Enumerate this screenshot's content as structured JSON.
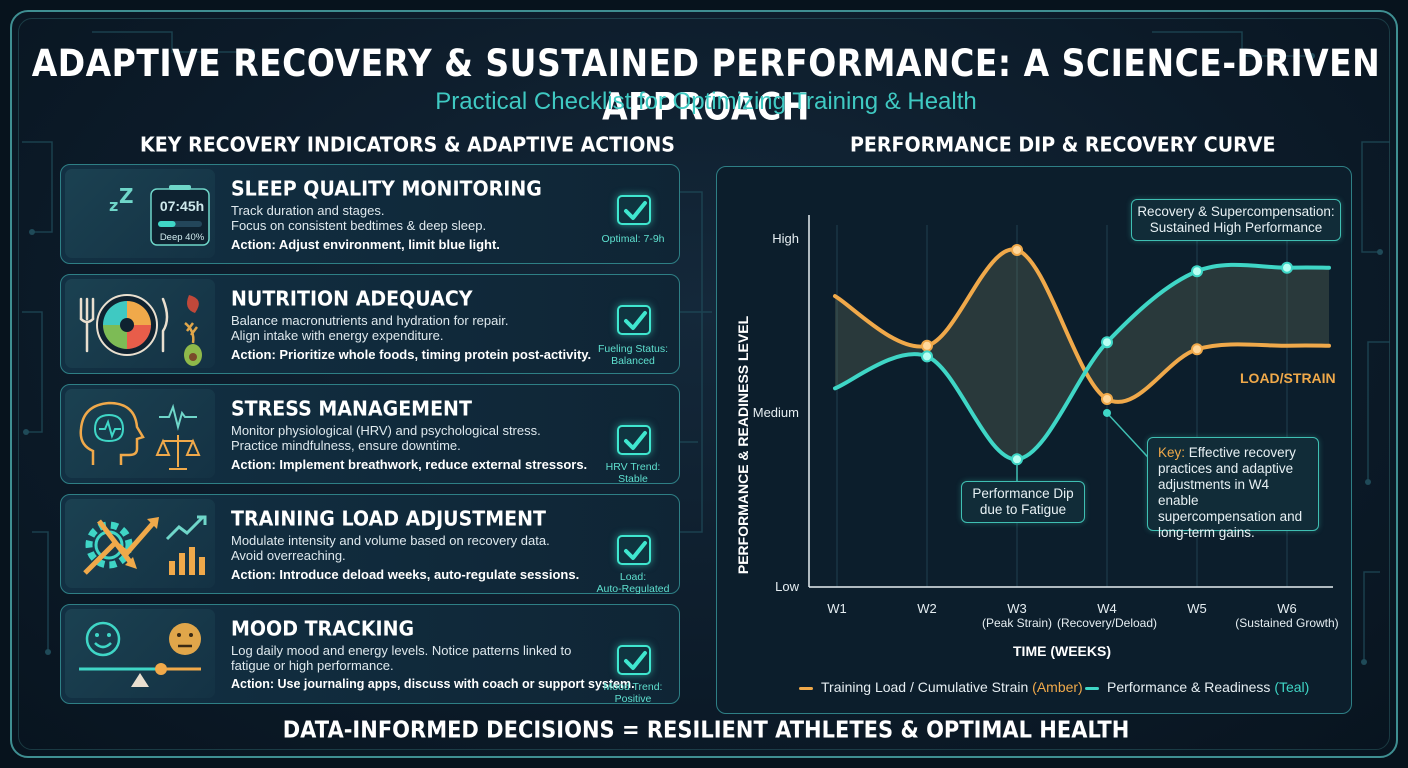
{
  "header": {
    "title": "ADAPTIVE RECOVERY & SUSTAINED PERFORMANCE: A SCIENCE-DRIVEN APPROACH",
    "subtitle": "Practical Checklist for Optimizing Training & Health"
  },
  "left_section": {
    "title": "KEY RECOVERY INDICATORS & ADAPTIVE ACTIONS",
    "cards": [
      {
        "title": "SLEEP QUALITY MONITORING",
        "line1": "Track duration and stages.",
        "line2": "Focus on consistent bedtimes & deep sleep.",
        "action": "Action: Adjust environment, limit blue light.",
        "status_line1": "Optimal: 7-9h",
        "status_line2": "",
        "icon": "moon-sleep-icon",
        "device_time": "07:45h",
        "device_deep": "Deep 40%",
        "device_deep_fraction": 0.4
      },
      {
        "title": "NUTRITION ADEQUACY",
        "line1": "Balance macronutrients and hydration for repair.",
        "line2": "Align intake with energy expenditure.",
        "action": "Action: Prioritize whole foods, timing protein post-activity.",
        "status_line1": "Fueling Status:",
        "status_line2": "Balanced",
        "icon": "plate-nutrition-icon"
      },
      {
        "title": "STRESS MANAGEMENT",
        "line1": "Monitor physiological (HRV) and psychological stress.",
        "line2": "Practice mindfulness, ensure downtime.",
        "action": "Action: Implement breathwork, reduce external stressors.",
        "status_line1": "HRV Trend:",
        "status_line2": "Stable",
        "icon": "brain-head-icon"
      },
      {
        "title": "TRAINING LOAD ADJUSTMENT",
        "line1": "Modulate intensity and volume based on recovery data.",
        "line2": "Avoid overreaching.",
        "action": "Action: Introduce deload weeks, auto-regulate sessions.",
        "status_line1": "Load:",
        "status_line2": "Auto-Regulated",
        "icon": "gear-trend-icon"
      },
      {
        "title": "MOOD TRACKING",
        "line1": "Log daily mood and energy levels. Notice patterns linked to",
        "line2": "fatigue or high performance.",
        "action": "Action: Use journaling apps, discuss with coach or support system.",
        "status_line1": "Mood Trend:",
        "status_line2": "Positive",
        "icon": "mood-faces-icon"
      }
    ]
  },
  "right_section": {
    "title": "PERFORMANCE DIP & RECOVERY CURVE"
  },
  "chart_data": {
    "type": "line",
    "x": [
      "W1",
      "W2",
      "W3",
      "W4",
      "W5",
      "W6"
    ],
    "x_sublabels": [
      "",
      "",
      "(Peak Strain)",
      "(Recovery/Deload)",
      "",
      "(Sustained Growth)"
    ],
    "ylabel": "PERFORMANCE & READINESS LEVEL",
    "xlabel": "TIME (WEEKS)",
    "y_ticks": [
      "Low",
      "Medium",
      "High"
    ],
    "y_range_note": "qualitative scale Low to High",
    "series": [
      {
        "name": "Training Load / Cumulative Strain",
        "color": "#f0a94a",
        "values": [
          0.82,
          0.68,
          0.95,
          0.53,
          0.67,
          0.68
        ]
      },
      {
        "name": "Performance & Readiness",
        "color": "#3fd6c6",
        "values": [
          0.56,
          0.65,
          0.36,
          0.69,
          0.89,
          0.9
        ]
      }
    ],
    "legend": [
      {
        "label": "Training Load / Cumulative Strain",
        "paren": "(Amber)"
      },
      {
        "label": "Performance & Readiness",
        "paren": "(Teal)"
      }
    ],
    "series_label": "LOAD/STRAIN",
    "annotations": {
      "top": "Recovery & Supercompensation: Sustained High Performance",
      "dip": "Performance Dip due to Fatigue",
      "key_prefix": "Key:",
      "key_text": "Effective recovery practices and adaptive adjustments in W4 enable supercompensation and long-term gains."
    },
    "grid": true,
    "legend_position": "bottom"
  },
  "footer": {
    "text": "DATA-INFORMED DECISIONS = RESILIENT ATHLETES & OPTIMAL HEALTH"
  },
  "colors": {
    "accent_teal": "#3fd6c6",
    "accent_amber": "#f0a94a",
    "background": "#0c1b29",
    "border": "#2e7f85"
  }
}
